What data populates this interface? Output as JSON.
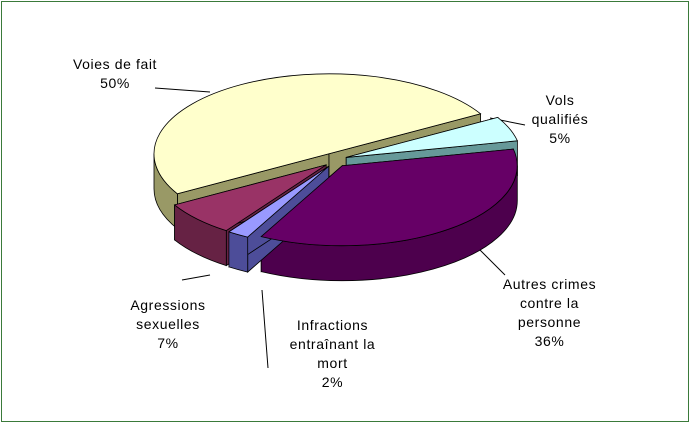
{
  "chart_data": {
    "type": "pie3d",
    "categories": [
      "Voies de fait",
      "Vols qualifiés",
      "Autres crimes contre la personne",
      "Infractions entraînant la mort",
      "Agressions sexuelles"
    ],
    "values": [
      50,
      5,
      36,
      2,
      7
    ],
    "value_labels": [
      "50%",
      "5%",
      "36%",
      "2%",
      "7%"
    ],
    "colors": [
      "#ffffcc",
      "#ccffff",
      "#660066",
      "#9999ff",
      "#993366"
    ],
    "side_colors": [
      "#999966",
      "#669999",
      "#4d004d",
      "#4d4d99",
      "#662244"
    ]
  }
}
